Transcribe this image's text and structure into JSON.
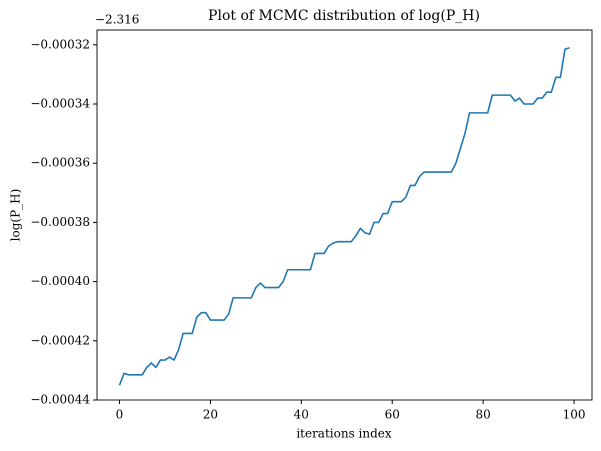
{
  "chart_data": {
    "type": "line",
    "title": "Plot of MCMC distribution of log(P_H)",
    "x_label": "iterations index",
    "y_label": "log(P_H)",
    "y_offset": {
      "value": -2.316,
      "label": "−2.316"
    },
    "x": [
      0,
      1,
      2,
      3,
      4,
      5,
      6,
      7,
      8,
      9,
      10,
      11,
      12,
      13,
      14,
      15,
      16,
      17,
      18,
      19,
      20,
      21,
      22,
      23,
      24,
      25,
      26,
      27,
      28,
      29,
      30,
      31,
      32,
      33,
      34,
      35,
      36,
      37,
      38,
      39,
      40,
      41,
      42,
      43,
      44,
      45,
      46,
      47,
      48,
      49,
      50,
      51,
      52,
      53,
      54,
      55,
      56,
      57,
      58,
      59,
      60,
      61,
      62,
      63,
      64,
      65,
      66,
      67,
      68,
      69,
      70,
      71,
      72,
      73,
      74,
      75,
      76,
      77,
      78,
      79,
      80,
      81,
      82,
      83,
      84,
      85,
      86,
      87,
      88,
      89,
      90,
      91,
      92,
      93,
      94,
      95,
      96,
      97,
      98,
      99
    ],
    "series": [
      {
        "color": "#1f77b4",
        "values": [
          -0.000435,
          -0.000431,
          -0.0004315,
          -0.0004315,
          -0.0004315,
          -0.0004315,
          -0.000429,
          -0.0004275,
          -0.000429,
          -0.0004265,
          -0.0004265,
          -0.0004255,
          -0.0004265,
          -0.000423,
          -0.0004175,
          -0.0004175,
          -0.0004175,
          -0.000412,
          -0.0004105,
          -0.0004105,
          -0.000413,
          -0.000413,
          -0.000413,
          -0.000413,
          -0.000411,
          -0.0004055,
          -0.0004055,
          -0.0004055,
          -0.0004055,
          -0.0004055,
          -0.000402,
          -0.0004005,
          -0.000402,
          -0.000402,
          -0.000402,
          -0.000402,
          -0.0004,
          -0.000396,
          -0.000396,
          -0.000396,
          -0.000396,
          -0.000396,
          -0.000396,
          -0.0003905,
          -0.0003905,
          -0.0003905,
          -0.000388,
          -0.000387,
          -0.0003865,
          -0.0003865,
          -0.0003865,
          -0.0003865,
          -0.0003845,
          -0.000382,
          -0.0003835,
          -0.000384,
          -0.00038,
          -0.00038,
          -0.000377,
          -0.000377,
          -0.000373,
          -0.000373,
          -0.000373,
          -0.0003715,
          -0.0003675,
          -0.0003675,
          -0.0003645,
          -0.000363,
          -0.000363,
          -0.000363,
          -0.000363,
          -0.000363,
          -0.000363,
          -0.000363,
          -0.00036,
          -0.000355,
          -0.00035,
          -0.000343,
          -0.000343,
          -0.000343,
          -0.000343,
          -0.000343,
          -0.000337,
          -0.000337,
          -0.000337,
          -0.000337,
          -0.000337,
          -0.000339,
          -0.000338,
          -0.00034,
          -0.00034,
          -0.00034,
          -0.000338,
          -0.000338,
          -0.000336,
          -0.000336,
          -0.000331,
          -0.000331,
          -0.0003215,
          -0.000321
        ]
      }
    ],
    "xlim": [
      -4.95,
      103.95
    ],
    "xticks": [
      0,
      20,
      40,
      60,
      80,
      100
    ],
    "ylim": [
      -0.00044,
      -0.000315
    ],
    "yticks": [
      {
        "value": -0.00044,
        "label": "−0.00044"
      },
      {
        "value": -0.00042,
        "label": "−0.00042"
      },
      {
        "value": -0.0004,
        "label": "−0.00040"
      },
      {
        "value": -0.00038,
        "label": "−0.00038"
      },
      {
        "value": -0.00036,
        "label": "−0.00036"
      },
      {
        "value": -0.00034,
        "label": "−0.00034"
      },
      {
        "value": -0.00032,
        "label": "−0.00032"
      }
    ],
    "grid": false
  }
}
